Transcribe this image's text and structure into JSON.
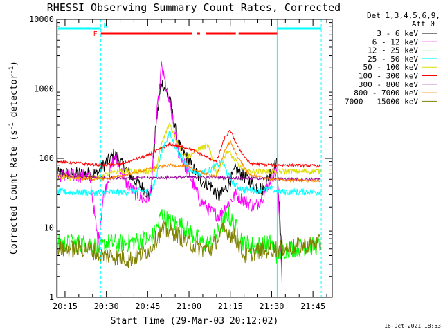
{
  "chart_data": {
    "type": "line",
    "title": "RHESSI Observing Summary Count Rates, Corrected",
    "xlabel": "Start Time (29-Mar-03 20:12:02)",
    "ylabel": "Corrected Count Rate (s",
    "ylabel_sup1": "-1",
    "ylabel_mid": " detector",
    "ylabel_sup2": "-1",
    "ylabel_end": ")",
    "y_scale": "log",
    "ylim": [
      1,
      10000
    ],
    "xlim": [
      "20:12",
      "21:52"
    ],
    "x_tick_labels": [
      "20:15",
      "20:30",
      "20:45",
      "21:00",
      "21:15",
      "21:30",
      "21:45"
    ],
    "y_tick_labels": [
      "1",
      "10",
      "100",
      "1000",
      "10000"
    ],
    "detectors_label": "Det 1,3,4,5,6,9,",
    "attenuator_label": "Att 0",
    "timestamp": "16-Oct-2021 18:53",
    "markers": {
      "night": "N",
      "flare": "F"
    },
    "series": [
      {
        "name": "3 - 6 keV",
        "color": "#000000",
        "x": [
          "20:12",
          "20:24",
          "20:27",
          "20:29",
          "20:33",
          "20:37",
          "20:41",
          "20:44",
          "20:46",
          "20:48",
          "20:50",
          "20:53",
          "20:56",
          "21:00",
          "21:04",
          "21:08",
          "21:11",
          "21:14",
          "21:17",
          "21:20",
          "21:24",
          "21:27",
          "21:30",
          "21:32",
          "21:34"
        ],
        "values": [
          60,
          60,
          62,
          80,
          115,
          70,
          45,
          35,
          28,
          300,
          1300,
          700,
          160,
          90,
          50,
          40,
          28,
          40,
          70,
          55,
          40,
          36,
          70,
          85,
          2
        ]
      },
      {
        "name": "6 - 12 keV",
        "color": "#ff00ff",
        "x": [
          "20:12",
          "20:24",
          "20:27",
          "20:29",
          "20:33",
          "20:37",
          "20:41",
          "20:44",
          "20:46",
          "20:48",
          "20:50",
          "20:53",
          "20:56",
          "21:00",
          "21:04",
          "21:08",
          "21:11",
          "21:14",
          "21:17",
          "21:20",
          "21:24",
          "21:27",
          "21:30",
          "21:32",
          "21:34"
        ],
        "values": [
          57,
          56,
          6,
          30,
          110,
          45,
          30,
          25,
          30,
          300,
          2100,
          600,
          130,
          60,
          25,
          17,
          15,
          22,
          30,
          25,
          20,
          30,
          55,
          65,
          1.2
        ]
      },
      {
        "name": "12 - 25 keV",
        "color": "#00ff00",
        "x": [
          "20:12",
          "20:24",
          "20:28",
          "20:30",
          "20:36",
          "20:42",
          "20:46",
          "20:48",
          "20:50",
          "20:53",
          "20:57",
          "21:00",
          "21:05",
          "21:08",
          "21:12",
          "21:14",
          "21:17",
          "21:20",
          "21:24",
          "21:30",
          "21:32",
          "21:35",
          "21:45",
          "21:48"
        ],
        "values": [
          6,
          6,
          5,
          6,
          6,
          6.5,
          7,
          9,
          16,
          12,
          11,
          9,
          6,
          6,
          11,
          16,
          10,
          6,
          5.5,
          6,
          4,
          5,
          5.5,
          5.5
        ]
      },
      {
        "name": "25 - 50 keV",
        "color": "#00ffff",
        "x": [
          "20:12",
          "20:28",
          "20:36",
          "20:42",
          "20:46",
          "20:48",
          "20:50",
          "20:53",
          "20:56",
          "21:00",
          "21:04",
          "21:08",
          "21:12",
          "21:14",
          "21:17",
          "21:20",
          "21:24",
          "21:30",
          "21:32",
          "21:40",
          "21:48"
        ],
        "values": [
          33,
          32,
          33,
          34,
          33,
          50,
          130,
          230,
          120,
          70,
          60,
          70,
          90,
          60,
          40,
          35,
          35,
          36,
          33,
          33,
          33
        ]
      },
      {
        "name": "50 - 100 keV",
        "color": "#dddd00",
        "x": [
          "20:12",
          "20:24",
          "20:28",
          "20:32",
          "20:40",
          "20:46",
          "20:48",
          "20:50",
          "20:53",
          "20:55",
          "20:58",
          "21:00",
          "21:04",
          "21:07",
          "21:10",
          "21:14",
          "21:17",
          "21:20",
          "21:30",
          "21:40",
          "21:48"
        ],
        "values": [
          53,
          53,
          53,
          65,
          65,
          66,
          70,
          160,
          320,
          200,
          110,
          110,
          140,
          150,
          60,
          130,
          90,
          65,
          65,
          65,
          65
        ]
      },
      {
        "name": "100 - 300 keV",
        "color": "#ff0000",
        "x": [
          "20:12",
          "20:20",
          "20:28",
          "20:35",
          "20:45",
          "20:53",
          "21:00",
          "21:05",
          "21:10",
          "21:13",
          "21:15",
          "21:18",
          "21:22",
          "21:30",
          "21:35",
          "21:48"
        ],
        "values": [
          90,
          85,
          80,
          82,
          110,
          160,
          140,
          110,
          90,
          200,
          250,
          140,
          85,
          80,
          80,
          78
        ]
      },
      {
        "name": "300 - 800 keV",
        "color": "#990099",
        "x": [
          "20:12",
          "20:28",
          "20:40",
          "20:50",
          "21:00",
          "21:10",
          "21:20",
          "21:30",
          "21:40",
          "21:48"
        ],
        "values": [
          56,
          53,
          52,
          53,
          54,
          53,
          52,
          51,
          50,
          50
        ]
      },
      {
        "name": "800 - 7000 keV",
        "color": "#ff8800",
        "x": [
          "20:12",
          "20:20",
          "20:28",
          "20:35",
          "20:45",
          "20:53",
          "21:00",
          "21:05",
          "21:10",
          "21:13",
          "21:15",
          "21:18",
          "21:22",
          "21:30",
          "21:40",
          "21:48"
        ],
        "values": [
          58,
          52,
          50,
          55,
          70,
          80,
          75,
          62,
          55,
          130,
          175,
          100,
          58,
          50,
          48,
          48
        ]
      },
      {
        "name": "7000 - 15000 keV",
        "color": "#808000",
        "x": [
          "20:12",
          "20:24",
          "20:28",
          "20:32",
          "20:38",
          "20:42",
          "20:46",
          "20:48",
          "20:50",
          "20:53",
          "20:56",
          "21:00",
          "21:04",
          "21:08",
          "21:12",
          "21:14",
          "21:17",
          "21:20",
          "21:24",
          "21:30",
          "21:32",
          "21:40",
          "21:48"
        ],
        "values": [
          5,
          5,
          4,
          4,
          3.5,
          4,
          5,
          7,
          9,
          9,
          8,
          6,
          5,
          5,
          9,
          9,
          7,
          4,
          4.5,
          5,
          5,
          5.5,
          6
        ]
      }
    ]
  }
}
